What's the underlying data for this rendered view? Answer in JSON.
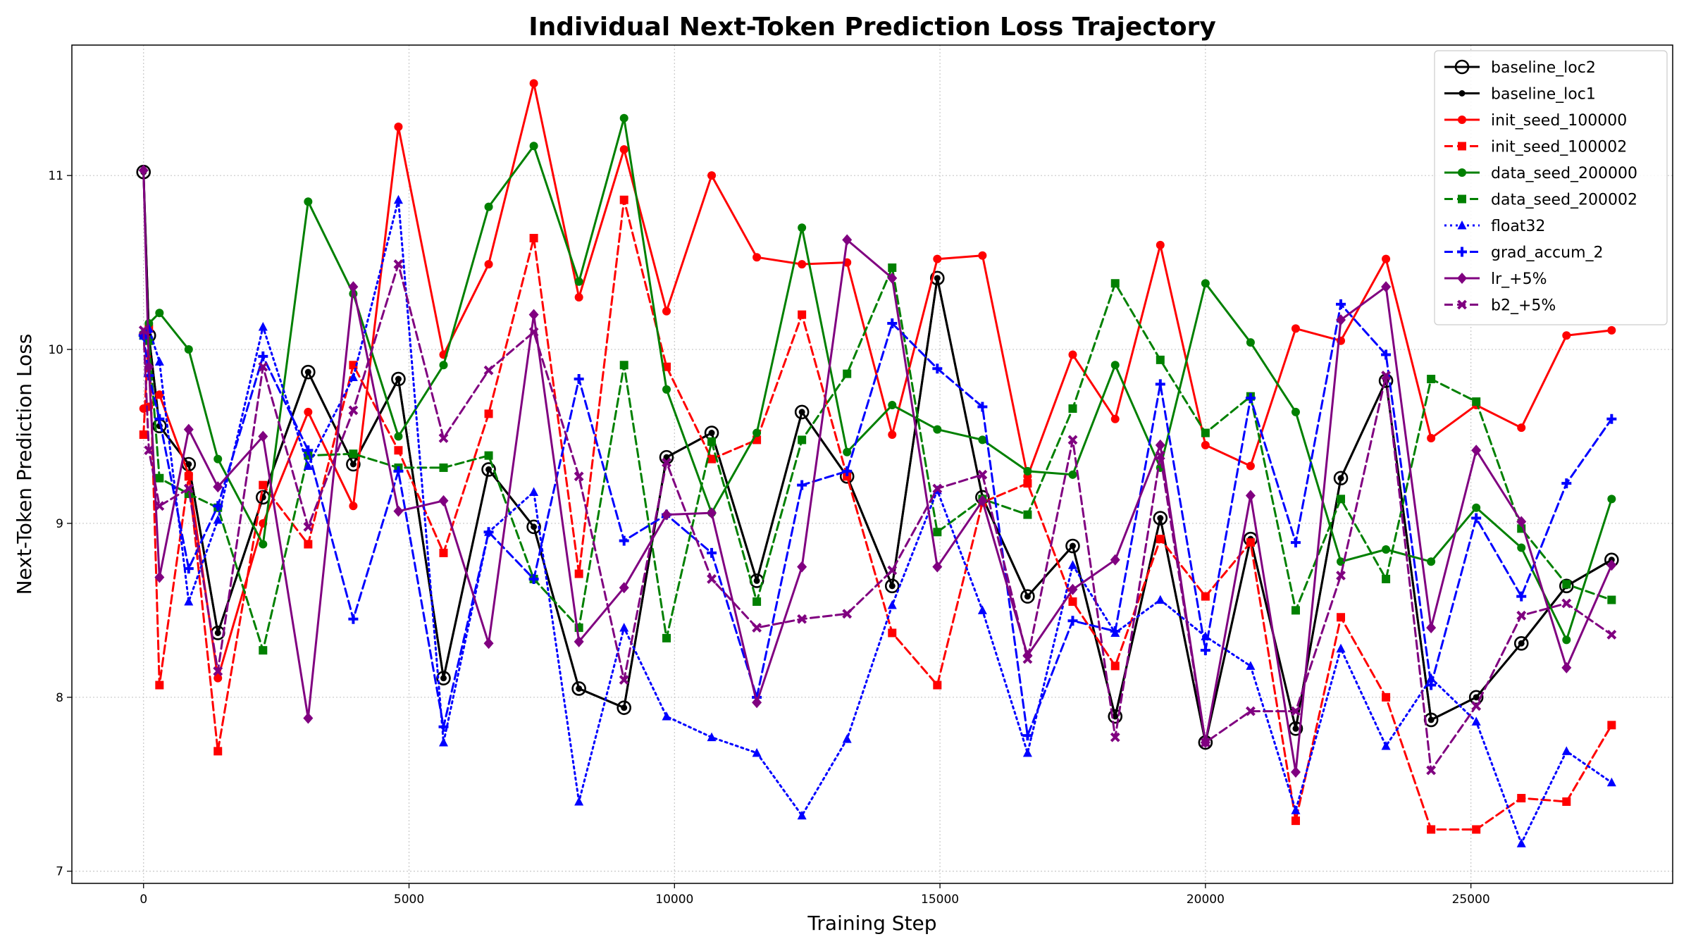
{
  "chart_data": {
    "type": "line",
    "title": "Individual Next-Token Prediction Loss Trajectory",
    "xlabel": "Training Step",
    "ylabel": "Next-Token Prediction Loss",
    "xlim": [
      -1350,
      28800
    ],
    "ylim": [
      6.93,
      11.75
    ],
    "xticks": [
      0,
      5000,
      10000,
      15000,
      20000,
      25000
    ],
    "yticks": [
      7,
      8,
      9,
      10,
      11
    ],
    "grid": true,
    "legend_position": "top-right",
    "x": [
      0,
      100,
      300,
      850,
      1400,
      2250,
      3100,
      3950,
      4800,
      5650,
      6500,
      7350,
      8200,
      9050,
      9850,
      10700,
      11550,
      12400,
      13250,
      14100,
      14950,
      15800,
      16650,
      17500,
      18300,
      19150,
      20000,
      20850,
      21700,
      22550,
      23400,
      24250,
      25100,
      25950,
      26800,
      27650
    ],
    "series": [
      {
        "name": "baseline_loc2",
        "color": "#000000",
        "linestyle": "solid",
        "marker": "open-circle",
        "values": [
          11.02,
          10.08,
          9.56,
          9.34,
          8.37,
          9.15,
          9.87,
          9.34,
          9.83,
          8.11,
          9.31,
          8.98,
          8.05,
          7.94,
          9.38,
          9.52,
          8.67,
          9.64,
          9.27,
          8.64,
          10.41,
          9.15,
          8.58,
          8.87,
          7.89,
          9.03,
          7.74,
          8.91,
          7.82,
          9.26,
          9.82,
          7.87,
          8.0,
          8.31,
          8.64,
          8.79
        ]
      },
      {
        "name": "baseline_loc1",
        "color": "#000000",
        "linestyle": "solid",
        "marker": "small-dot",
        "values": [
          11.02,
          10.08,
          9.56,
          9.34,
          8.37,
          9.15,
          9.87,
          9.34,
          9.83,
          8.11,
          9.31,
          8.98,
          8.05,
          7.94,
          9.38,
          9.52,
          8.67,
          9.64,
          9.27,
          8.64,
          10.41,
          9.15,
          8.58,
          8.87,
          7.89,
          9.03,
          7.74,
          8.91,
          7.82,
          9.26,
          9.82,
          7.87,
          8.0,
          8.31,
          8.64,
          8.79
        ]
      },
      {
        "name": "init_seed_100000",
        "color": "#ff0000",
        "linestyle": "solid",
        "marker": "circle",
        "values": [
          9.66,
          9.67,
          9.74,
          9.28,
          8.11,
          9.0,
          9.64,
          9.1,
          11.28,
          9.97,
          10.49,
          11.53,
          10.3,
          11.15,
          10.22,
          11.0,
          10.53,
          10.49,
          10.5,
          9.51,
          10.52,
          10.54,
          9.27,
          9.97,
          9.6,
          10.6,
          9.45,
          9.33,
          10.12,
          10.05,
          10.52,
          9.49,
          9.68,
          9.55,
          10.08,
          10.11
        ]
      },
      {
        "name": "init_seed_100002",
        "color": "#ff0000",
        "linestyle": "dashed",
        "marker": "square",
        "values": [
          9.51,
          10.12,
          8.07,
          9.27,
          7.69,
          9.22,
          8.88,
          9.91,
          9.42,
          8.83,
          9.63,
          10.64,
          8.71,
          10.86,
          9.9,
          9.37,
          9.48,
          10.2,
          9.27,
          8.37,
          8.07,
          9.12,
          9.23,
          8.55,
          8.18,
          8.91,
          8.58,
          8.89,
          7.29,
          8.46,
          8.0,
          7.24,
          7.24,
          7.42,
          7.4,
          7.84
        ]
      },
      {
        "name": "data_seed_200000",
        "color": "#008000",
        "linestyle": "solid",
        "marker": "circle",
        "values": [
          10.09,
          10.15,
          10.21,
          10.0,
          9.37,
          8.88,
          10.85,
          10.32,
          9.5,
          9.91,
          10.82,
          11.17,
          10.39,
          11.33,
          9.77,
          9.06,
          9.52,
          10.7,
          9.41,
          9.68,
          9.54,
          9.48,
          9.3,
          9.28,
          9.91,
          9.32,
          10.38,
          10.04,
          9.64,
          8.78,
          8.85,
          8.78,
          9.09,
          8.86,
          8.33,
          9.14
        ]
      },
      {
        "name": "data_seed_200002",
        "color": "#008000",
        "linestyle": "dashed",
        "marker": "square",
        "values": [
          10.08,
          10.05,
          9.26,
          9.17,
          9.09,
          8.27,
          9.39,
          9.4,
          9.32,
          9.32,
          9.39,
          8.68,
          8.4,
          9.91,
          8.34,
          9.47,
          8.55,
          9.48,
          9.86,
          10.47,
          8.95,
          9.14,
          9.05,
          9.66,
          10.38,
          9.94,
          9.52,
          9.73,
          8.5,
          9.14,
          8.68,
          9.83,
          9.7,
          8.97,
          8.65,
          8.56
        ]
      },
      {
        "name": "float32",
        "color": "#0000ff",
        "linestyle": "dotted",
        "marker": "triangle",
        "values": [
          10.08,
          10.12,
          9.93,
          8.55,
          9.02,
          10.13,
          9.33,
          9.84,
          10.86,
          7.74,
          8.95,
          9.18,
          7.4,
          8.4,
          7.89,
          7.77,
          7.68,
          7.32,
          7.76,
          8.53,
          9.19,
          8.5,
          7.68,
          8.76,
          8.37,
          8.56,
          8.35,
          8.18,
          7.35,
          8.28,
          7.72,
          8.11,
          7.86,
          7.16,
          7.69,
          7.51
        ]
      },
      {
        "name": "grad_accum_2",
        "color": "#0000ff",
        "linestyle": "dashed",
        "marker": "plus",
        "values": [
          10.08,
          9.85,
          9.6,
          8.74,
          9.1,
          9.96,
          9.42,
          8.45,
          9.3,
          7.83,
          8.95,
          8.68,
          9.83,
          8.9,
          9.05,
          8.83,
          8.0,
          9.22,
          9.3,
          10.15,
          9.89,
          9.67,
          7.78,
          8.44,
          8.38,
          9.8,
          8.27,
          9.72,
          8.89,
          10.26,
          9.97,
          8.07,
          9.03,
          8.58,
          9.23,
          9.6
        ]
      },
      {
        "name": "lr_+5%",
        "color": "#800080",
        "linestyle": "solid",
        "marker": "diamond",
        "values": [
          11.03,
          9.9,
          8.69,
          9.54,
          9.21,
          9.5,
          7.88,
          10.36,
          9.07,
          9.13,
          8.31,
          10.2,
          8.32,
          8.63,
          9.05,
          9.06,
          7.97,
          8.75,
          10.63,
          10.41,
          8.75,
          9.13,
          8.24,
          8.62,
          8.79,
          9.45,
          7.74,
          9.16,
          7.57,
          10.17,
          10.36,
          8.4,
          9.42,
          9.01,
          8.17,
          8.76
        ]
      },
      {
        "name": "b2_+5%",
        "color": "#800080",
        "linestyle": "dashed",
        "marker": "x",
        "values": [
          10.11,
          9.42,
          9.1,
          9.2,
          8.15,
          9.9,
          8.98,
          9.65,
          10.49,
          9.49,
          9.88,
          10.1,
          9.27,
          8.1,
          9.35,
          8.68,
          8.4,
          8.45,
          8.48,
          8.73,
          9.2,
          9.28,
          8.22,
          9.48,
          7.77,
          9.39,
          7.74,
          7.92,
          7.92,
          8.7,
          9.85,
          7.58,
          7.95,
          8.47,
          8.54,
          8.36
        ]
      }
    ]
  }
}
